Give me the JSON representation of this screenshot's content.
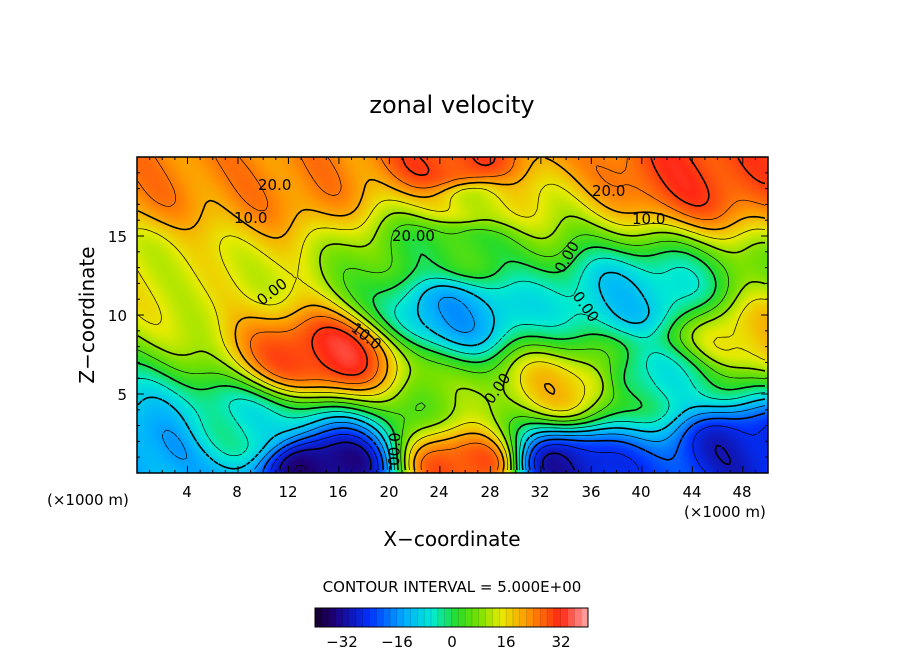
{
  "chart_data": {
    "type": "heatmap",
    "title": "zonal velocity",
    "xlabel": "X−coordinate",
    "ylabel": "Z−coordinate",
    "x_unit": "(×1000 m)",
    "z_unit": "(×1000 m)",
    "xlim": [
      0,
      50
    ],
    "ylim": [
      0,
      20
    ],
    "x_ticks": [
      "4",
      "8",
      "12",
      "16",
      "20",
      "24",
      "28",
      "32",
      "36",
      "40",
      "44",
      "48"
    ],
    "y_ticks": [
      "5",
      "10",
      "15"
    ],
    "contour_interval_label": "CONTOUR INTERVAL = 5.000E+00",
    "colorbar": {
      "min": -40,
      "max": 40,
      "ticks": [
        "−32",
        "−16",
        "0",
        "16",
        "32"
      ]
    },
    "contour_labels": [
      "20.0",
      "20.0",
      "10.0",
      "10.0",
      "20.00",
      "0.00",
      "10.0",
      "0.00",
      "0.00",
      "0.00",
      "00.0"
    ],
    "features": [
      {
        "x": 15,
        "z": 7.5,
        "value": 32
      },
      {
        "x": 15,
        "z": 0.5,
        "value": -35
      },
      {
        "x": 26,
        "z": 0.5,
        "value": 30
      },
      {
        "x": 34,
        "z": 0.5,
        "value": -30
      },
      {
        "x": 34,
        "z": 5.5,
        "value": 18
      },
      {
        "x": 48,
        "z": 1.5,
        "value": -28
      },
      {
        "x": 0.5,
        "z": 1.5,
        "value": -15
      },
      {
        "x": 1.5,
        "z": 12.5,
        "value": 14
      },
      {
        "x": 49,
        "z": 8.5,
        "value": 18
      },
      {
        "x": 25,
        "z": 10,
        "value": -14
      },
      {
        "x": 39,
        "z": 11,
        "value": -10
      },
      {
        "x": 41,
        "z": 6,
        "value": -5
      },
      {
        "x": 8,
        "z": 2.5,
        "value": -5
      },
      {
        "x": 25,
        "z": 19.5,
        "value": 30
      },
      {
        "x": 44,
        "z": 19,
        "value": 30
      },
      {
        "x": 12,
        "z": 18.5,
        "value": 24
      },
      {
        "x": 1,
        "z": 19,
        "value": 24
      },
      {
        "x": 27,
        "z": 17,
        "value": 14
      },
      {
        "x": 25,
        "z": 14.5,
        "value": 2
      }
    ]
  }
}
